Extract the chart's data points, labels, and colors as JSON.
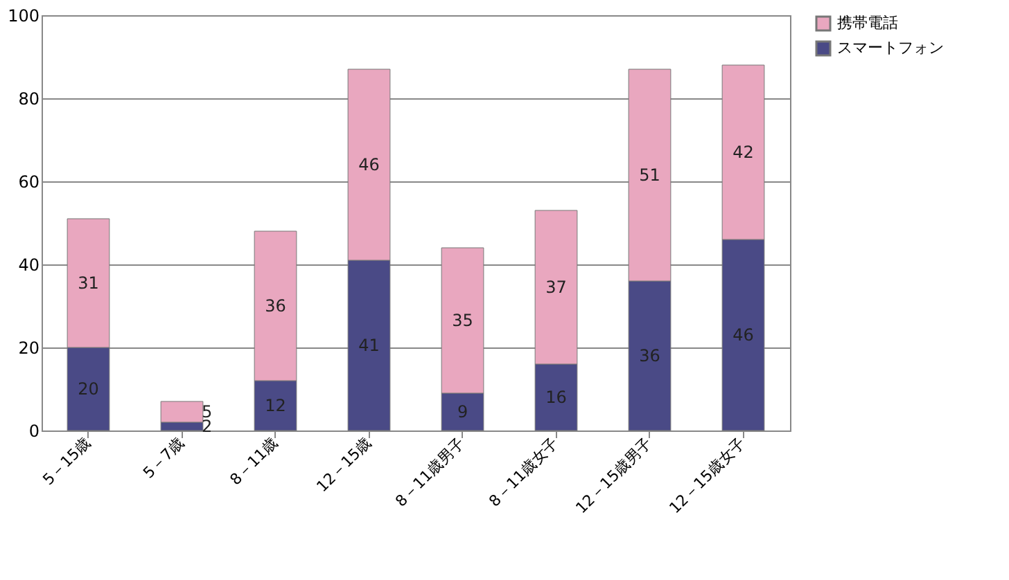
{
  "chart_data": {
    "type": "bar",
    "stacked": true,
    "categories": [
      "5－15歳",
      "5－7歳",
      "8－11歳",
      "12－15歳",
      "8－11歳男子",
      "8－11歳女子",
      "12－15歳男子",
      "12－15歳女子"
    ],
    "series": [
      {
        "name": "スマートフォン",
        "color": "#4a4a86",
        "values": [
          20,
          2,
          12,
          41,
          9,
          16,
          36,
          46
        ]
      },
      {
        "name": "携帯電話",
        "color": "#e9a7bf",
        "values": [
          31,
          5,
          36,
          46,
          35,
          37,
          51,
          42
        ]
      }
    ],
    "ylim": [
      0,
      100
    ],
    "yticks": [
      0,
      20,
      40,
      60,
      80,
      100
    ],
    "grid": "y",
    "legend": "right",
    "data_labels": true
  }
}
